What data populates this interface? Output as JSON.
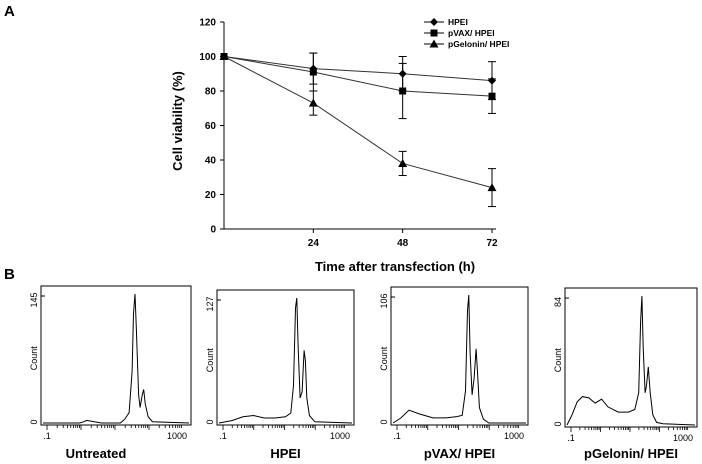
{
  "panel_a": {
    "label": "A",
    "chart_data": {
      "type": "line",
      "title": "",
      "xlabel": "Time after transfection (h)",
      "ylabel": "Cell viability (%)",
      "x": [
        0,
        24,
        48,
        72
      ],
      "x_tick_labels": [
        "24",
        "48",
        "72"
      ],
      "x_ticks": [
        24,
        48,
        72
      ],
      "y_ticks": [
        0,
        20,
        40,
        60,
        80,
        100,
        120
      ],
      "ylim": [
        0,
        120
      ],
      "xlim": [
        0,
        72
      ],
      "grid": false,
      "legend_position": "top-right",
      "series": [
        {
          "name": "HPEI",
          "marker": "diamond",
          "values": [
            100,
            93,
            90,
            86
          ],
          "errors": [
            0,
            9,
            10,
            11
          ]
        },
        {
          "name": "pVAX/ HPEI",
          "marker": "square",
          "values": [
            100,
            91,
            80,
            77
          ],
          "errors": [
            0,
            11,
            16,
            10
          ]
        },
        {
          "name": "pGelonin/ HPEI",
          "marker": "triangle",
          "values": [
            100,
            73,
            38,
            24
          ],
          "errors": [
            0,
            7,
            7,
            11
          ]
        }
      ]
    }
  },
  "panel_b": {
    "label": "B",
    "chart_data": [
      {
        "type": "area",
        "title": "Untreated",
        "ylabel": "Count",
        "y_max_label": "145",
        "y_zero_label": "0",
        "x_tick_labels": [
          ".1",
          "1000"
        ],
        "profile": [
          [
            0.0,
            0.0
          ],
          [
            0.25,
            0.0
          ],
          [
            0.28,
            0.01
          ],
          [
            0.3,
            0.02
          ],
          [
            0.4,
            0.0
          ],
          [
            0.53,
            0.0
          ],
          [
            0.56,
            0.03
          ],
          [
            0.59,
            0.08
          ],
          [
            0.61,
            0.4
          ],
          [
            0.62,
            0.85
          ],
          [
            0.63,
            1.0
          ],
          [
            0.64,
            0.72
          ],
          [
            0.655,
            0.22
          ],
          [
            0.665,
            0.12
          ],
          [
            0.68,
            0.22
          ],
          [
            0.69,
            0.26
          ],
          [
            0.7,
            0.15
          ],
          [
            0.72,
            0.05
          ],
          [
            0.75,
            0.01
          ],
          [
            1.0,
            0.0
          ]
        ]
      },
      {
        "type": "area",
        "title": "HPEI",
        "ylabel": "Count",
        "y_max_label": "127",
        "y_zero_label": "0",
        "x_tick_labels": [
          ".1",
          "1000"
        ],
        "profile": [
          [
            0.0,
            0.0
          ],
          [
            0.1,
            0.02
          ],
          [
            0.18,
            0.05
          ],
          [
            0.26,
            0.06
          ],
          [
            0.34,
            0.04
          ],
          [
            0.42,
            0.04
          ],
          [
            0.5,
            0.05
          ],
          [
            0.54,
            0.08
          ],
          [
            0.56,
            0.3
          ],
          [
            0.575,
            0.92
          ],
          [
            0.585,
            1.0
          ],
          [
            0.595,
            0.62
          ],
          [
            0.61,
            0.2
          ],
          [
            0.625,
            0.25
          ],
          [
            0.64,
            0.58
          ],
          [
            0.65,
            0.5
          ],
          [
            0.66,
            0.2
          ],
          [
            0.68,
            0.06
          ],
          [
            0.72,
            0.01
          ],
          [
            1.0,
            0.0
          ]
        ]
      },
      {
        "type": "area",
        "title": "pVAX/ HPEI",
        "ylabel": "Count",
        "y_max_label": "106",
        "y_zero_label": "0",
        "x_tick_labels": [
          ".1",
          "1000"
        ],
        "profile": [
          [
            0.0,
            0.0
          ],
          [
            0.06,
            0.04
          ],
          [
            0.12,
            0.1
          ],
          [
            0.2,
            0.07
          ],
          [
            0.3,
            0.04
          ],
          [
            0.4,
            0.04
          ],
          [
            0.48,
            0.05
          ],
          [
            0.52,
            0.06
          ],
          [
            0.545,
            0.25
          ],
          [
            0.56,
            0.88
          ],
          [
            0.57,
            1.0
          ],
          [
            0.58,
            0.55
          ],
          [
            0.595,
            0.22
          ],
          [
            0.61,
            0.35
          ],
          [
            0.625,
            0.58
          ],
          [
            0.635,
            0.4
          ],
          [
            0.65,
            0.12
          ],
          [
            0.68,
            0.03
          ],
          [
            0.72,
            0.0
          ],
          [
            1.0,
            0.0
          ]
        ]
      },
      {
        "type": "area",
        "title": "pGelonin/ HPEI",
        "ylabel": "Count",
        "y_max_label": "84",
        "y_zero_label": "0",
        "x_tick_labels": [
          ".1",
          "1000"
        ],
        "profile": [
          [
            0.0,
            0.0
          ],
          [
            0.04,
            0.08
          ],
          [
            0.08,
            0.18
          ],
          [
            0.12,
            0.22
          ],
          [
            0.17,
            0.21
          ],
          [
            0.22,
            0.17
          ],
          [
            0.27,
            0.2
          ],
          [
            0.32,
            0.14
          ],
          [
            0.4,
            0.1
          ],
          [
            0.48,
            0.1
          ],
          [
            0.53,
            0.12
          ],
          [
            0.56,
            0.25
          ],
          [
            0.575,
            0.8
          ],
          [
            0.585,
            1.0
          ],
          [
            0.595,
            0.6
          ],
          [
            0.61,
            0.25
          ],
          [
            0.62,
            0.3
          ],
          [
            0.635,
            0.45
          ],
          [
            0.65,
            0.25
          ],
          [
            0.67,
            0.08
          ],
          [
            0.7,
            0.02
          ],
          [
            0.75,
            0.01
          ],
          [
            1.0,
            0.0
          ]
        ]
      }
    ]
  }
}
